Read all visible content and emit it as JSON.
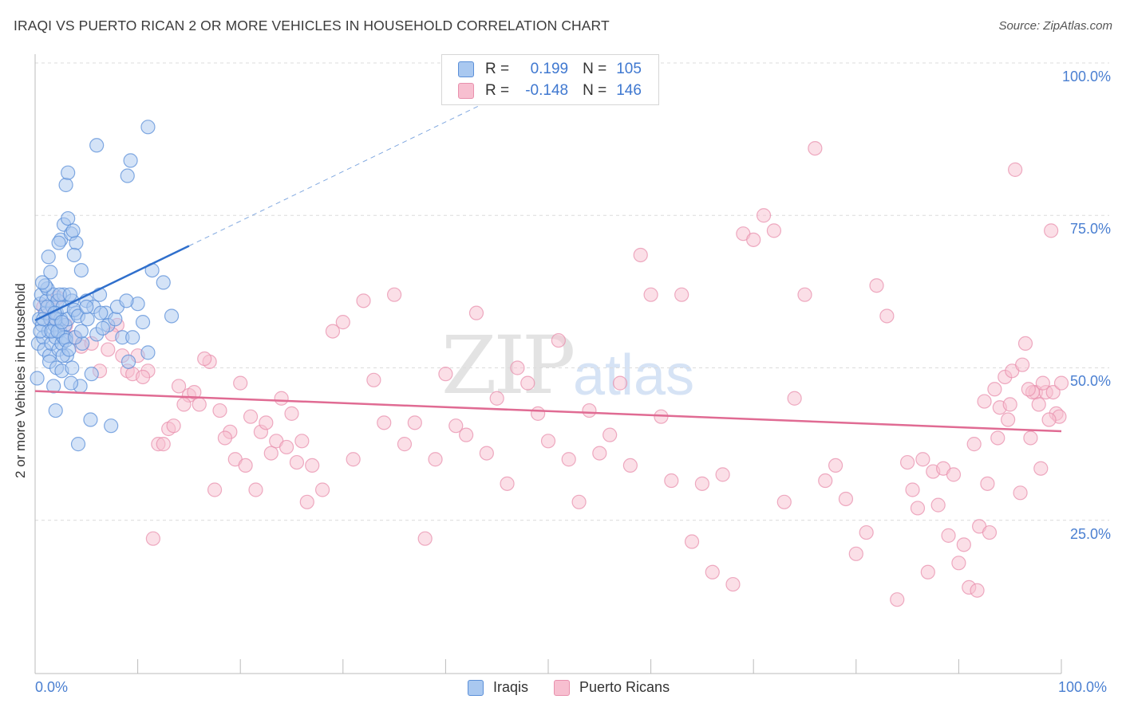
{
  "header": {
    "title": "IRAQI VS PUERTO RICAN 2 OR MORE VEHICLES IN HOUSEHOLD CORRELATION CHART",
    "source": "Source: ZipAtlas.com"
  },
  "watermark": {
    "zip": "ZIP",
    "atlas": "atlas"
  },
  "legend_top": {
    "rows": [
      {
        "r_label": "R =",
        "r_value": "0.199",
        "n_label": "N =",
        "n_value": "105"
      },
      {
        "r_label": "R =",
        "r_value": "-0.148",
        "n_label": "N =",
        "n_value": "146"
      }
    ]
  },
  "colors": {
    "iraqi_fill": "#a9c8f0",
    "iraqi_stroke": "#5b8fd8",
    "iraqi_line": "#2f6fcc",
    "pr_fill": "#f7bfd0",
    "pr_stroke": "#e890ad",
    "pr_line": "#e06b93",
    "grid": "#dcdcdc",
    "tick_text": "#4a7fd1"
  },
  "chart_data": {
    "type": "scatter",
    "title": "IRAQI VS PUERTO RICAN 2 OR MORE VEHICLES IN HOUSEHOLD CORRELATION CHART",
    "xlabel": "",
    "ylabel": "2 or more Vehicles in Household",
    "xlim": [
      0,
      100
    ],
    "ylim": [
      0,
      100
    ],
    "x_tick_labels": [
      "0.0%",
      "100.0%"
    ],
    "y_tick_labels": [
      "25.0%",
      "50.0%",
      "75.0%",
      "100.0%"
    ],
    "y_ticks": [
      25,
      50,
      75,
      100
    ],
    "grid": true,
    "legend_position": "bottom",
    "series": [
      {
        "name": "Iraqis",
        "r": 0.199,
        "n": 105,
        "trend": {
          "x0": 0,
          "y0": 57.8,
          "x1": 15,
          "y1": 70.0,
          "dashed_to_x": 45,
          "dashed_to_y": 94.4
        },
        "points": [
          [
            0.2,
            48.3
          ],
          [
            0.3,
            54
          ],
          [
            0.4,
            58
          ],
          [
            0.5,
            60.5
          ],
          [
            0.6,
            62
          ],
          [
            0.7,
            57
          ],
          [
            0.8,
            55
          ],
          [
            0.9,
            53
          ],
          [
            1.0,
            59
          ],
          [
            1.1,
            61
          ],
          [
            1.2,
            63
          ],
          [
            1.3,
            56
          ],
          [
            1.4,
            52
          ],
          [
            1.5,
            58
          ],
          [
            1.6,
            54
          ],
          [
            1.7,
            60
          ],
          [
            1.8,
            62
          ],
          [
            1.9,
            57
          ],
          [
            2.0,
            55
          ],
          [
            2.1,
            59
          ],
          [
            2.2,
            61
          ],
          [
            2.3,
            53
          ],
          [
            2.4,
            56
          ],
          [
            2.5,
            58
          ],
          [
            2.6,
            54
          ],
          [
            2.7,
            60
          ],
          [
            2.8,
            62
          ],
          [
            2.9,
            57
          ],
          [
            3.0,
            55
          ],
          [
            3.1,
            52
          ],
          [
            0.5,
            56
          ],
          [
            0.8,
            58
          ],
          [
            1.2,
            60
          ],
          [
            1.6,
            56
          ],
          [
            2.0,
            58
          ],
          [
            2.4,
            62
          ],
          [
            2.8,
            55
          ],
          [
            3.2,
            58
          ],
          [
            3.6,
            61
          ],
          [
            4.0,
            59
          ],
          [
            1.0,
            63.5
          ],
          [
            1.5,
            65.7
          ],
          [
            1.3,
            68.2
          ],
          [
            2.5,
            71
          ],
          [
            2.8,
            73.5
          ],
          [
            3.2,
            74.5
          ],
          [
            3.5,
            72
          ],
          [
            4.0,
            70.5
          ],
          [
            3.8,
            68.5
          ],
          [
            4.5,
            66
          ],
          [
            0.7,
            64
          ],
          [
            1.9,
            59
          ],
          [
            2.2,
            56
          ],
          [
            2.6,
            57.5
          ],
          [
            3.0,
            54.5
          ],
          [
            3.4,
            62
          ],
          [
            3.8,
            59.5
          ],
          [
            4.2,
            58.5
          ],
          [
            4.6,
            54
          ],
          [
            5.0,
            61
          ],
          [
            1.4,
            51
          ],
          [
            2.1,
            50
          ],
          [
            2.7,
            52
          ],
          [
            3.3,
            53
          ],
          [
            3.9,
            55
          ],
          [
            4.5,
            56
          ],
          [
            5.1,
            58
          ],
          [
            5.7,
            60
          ],
          [
            6.3,
            62
          ],
          [
            6.9,
            59
          ],
          [
            1.8,
            47
          ],
          [
            2.6,
            49.5
          ],
          [
            3.6,
            50
          ],
          [
            4.4,
            47
          ],
          [
            5.4,
            41.5
          ],
          [
            6.4,
            59
          ],
          [
            7.1,
            57
          ],
          [
            7.8,
            58
          ],
          [
            8.5,
            55
          ],
          [
            9.1,
            51
          ],
          [
            2.0,
            43
          ],
          [
            3.5,
            47.5
          ],
          [
            4.2,
            37.5
          ],
          [
            5.5,
            49
          ],
          [
            6.0,
            55.5
          ],
          [
            7.4,
            40.5
          ],
          [
            8.0,
            60
          ],
          [
            9.5,
            55
          ],
          [
            10.0,
            60.5
          ],
          [
            11.0,
            52.5
          ],
          [
            12.5,
            64
          ],
          [
            11.4,
            66
          ],
          [
            13.3,
            58.5
          ],
          [
            3.0,
            80
          ],
          [
            3.2,
            82
          ],
          [
            6.0,
            86.5
          ],
          [
            9.3,
            84
          ],
          [
            9.0,
            81.5
          ],
          [
            11.0,
            89.5
          ],
          [
            8.9,
            61
          ],
          [
            2.3,
            70.5
          ],
          [
            3.7,
            72.5
          ],
          [
            5.0,
            60
          ],
          [
            6.6,
            56.5
          ],
          [
            10.5,
            57.5
          ]
        ]
      },
      {
        "name": "Puerto Ricans",
        "r": -0.148,
        "n": 146,
        "trend": {
          "x0": 0,
          "y0": 46.2,
          "x1": 100,
          "y1": 39.6
        },
        "points": [
          [
            0.8,
            60
          ],
          [
            1.5,
            58
          ],
          [
            2.2,
            61.5
          ],
          [
            3.0,
            57
          ],
          [
            3.8,
            55
          ],
          [
            4.5,
            53.5
          ],
          [
            5.5,
            54
          ],
          [
            6.3,
            49.5
          ],
          [
            7.1,
            53
          ],
          [
            8.0,
            57
          ],
          [
            9.0,
            49.5
          ],
          [
            10.0,
            52
          ],
          [
            11.0,
            49.5
          ],
          [
            12.0,
            37.5
          ],
          [
            13.0,
            40
          ],
          [
            14.0,
            47
          ],
          [
            15.0,
            45.5
          ],
          [
            16.0,
            44
          ],
          [
            17.0,
            51
          ],
          [
            18.0,
            43
          ],
          [
            19.0,
            39.5
          ],
          [
            20.0,
            47.5
          ],
          [
            21.0,
            42
          ],
          [
            22.0,
            39.5
          ],
          [
            23.0,
            36
          ],
          [
            24.0,
            45
          ],
          [
            25.0,
            42.5
          ],
          [
            26.0,
            38
          ],
          [
            27.0,
            34
          ],
          [
            28.0,
            30
          ],
          [
            29.0,
            56
          ],
          [
            30.0,
            57.5
          ],
          [
            31.0,
            35
          ],
          [
            32.0,
            61
          ],
          [
            33.0,
            48
          ],
          [
            34.0,
            41
          ],
          [
            35.0,
            62
          ],
          [
            36.0,
            37.5
          ],
          [
            37.0,
            41
          ],
          [
            38.0,
            22
          ],
          [
            39.0,
            35
          ],
          [
            40.0,
            49
          ],
          [
            41.0,
            40.5
          ],
          [
            42.0,
            39
          ],
          [
            43.0,
            59
          ],
          [
            44.0,
            36
          ],
          [
            45.0,
            45
          ],
          [
            46.0,
            31
          ],
          [
            47.0,
            50
          ],
          [
            48.0,
            47.5
          ],
          [
            49.0,
            42.5
          ],
          [
            50.0,
            38
          ],
          [
            51.0,
            54.5
          ],
          [
            52.0,
            35
          ],
          [
            53.0,
            28
          ],
          [
            54.0,
            43
          ],
          [
            55.0,
            36
          ],
          [
            56.0,
            39
          ],
          [
            57.0,
            47.5
          ],
          [
            58.0,
            34
          ],
          [
            59.0,
            68.5
          ],
          [
            60.0,
            62
          ],
          [
            61.0,
            42
          ],
          [
            62.0,
            31.5
          ],
          [
            63.0,
            62
          ],
          [
            64.0,
            21.5
          ],
          [
            65.0,
            31
          ],
          [
            66.0,
            16.5
          ],
          [
            67.0,
            32.5
          ],
          [
            68.0,
            14.5
          ],
          [
            69.0,
            72
          ],
          [
            70.0,
            71
          ],
          [
            71.0,
            75
          ],
          [
            72.0,
            72.5
          ],
          [
            73.0,
            28
          ],
          [
            74.0,
            45
          ],
          [
            75.0,
            62
          ],
          [
            76.0,
            86
          ],
          [
            77.0,
            31.5
          ],
          [
            78.0,
            34
          ],
          [
            79.0,
            28.5
          ],
          [
            80.0,
            19.5
          ],
          [
            81.0,
            23
          ],
          [
            82.0,
            63.5
          ],
          [
            83.0,
            58.5
          ],
          [
            84.0,
            12
          ],
          [
            85.0,
            34.5
          ],
          [
            86.0,
            27
          ],
          [
            87.0,
            16.5
          ],
          [
            88.0,
            27.5
          ],
          [
            89.0,
            22.5
          ],
          [
            90.0,
            18
          ],
          [
            91.0,
            14
          ],
          [
            92.0,
            24
          ],
          [
            93.0,
            23
          ],
          [
            94.0,
            43.5
          ],
          [
            95.0,
            44
          ],
          [
            96.0,
            29.5
          ],
          [
            97.0,
            38.5
          ],
          [
            98.0,
            33.5
          ],
          [
            99.0,
            72.5
          ],
          [
            95.5,
            82.5
          ],
          [
            96.5,
            54
          ],
          [
            97.5,
            46
          ],
          [
            98.5,
            46
          ],
          [
            99.5,
            42.5
          ],
          [
            91.5,
            37.5
          ],
          [
            92.5,
            44.5
          ],
          [
            93.5,
            46.5
          ],
          [
            94.5,
            48.5
          ],
          [
            95.2,
            49.5
          ],
          [
            96.2,
            50.5
          ],
          [
            97.2,
            46
          ],
          [
            98.2,
            47.5
          ],
          [
            99.2,
            46
          ],
          [
            99.8,
            42
          ],
          [
            100.0,
            47.5
          ],
          [
            98.8,
            41.5
          ],
          [
            97.8,
            44
          ],
          [
            96.8,
            46.5
          ],
          [
            85.5,
            30
          ],
          [
            86.5,
            35
          ],
          [
            87.5,
            33
          ],
          [
            88.5,
            33.5
          ],
          [
            89.5,
            32.5
          ],
          [
            90.5,
            21
          ],
          [
            91.8,
            13.5
          ],
          [
            92.8,
            31
          ],
          [
            93.8,
            38.5
          ],
          [
            94.8,
            41.5
          ],
          [
            7.5,
            55.5
          ],
          [
            8.5,
            52
          ],
          [
            9.5,
            49
          ],
          [
            10.5,
            48.5
          ],
          [
            11.5,
            22
          ],
          [
            12.5,
            37.5
          ],
          [
            13.5,
            40.5
          ],
          [
            14.5,
            44
          ],
          [
            15.5,
            46
          ],
          [
            16.5,
            51.5
          ],
          [
            17.5,
            30
          ],
          [
            18.5,
            38.5
          ],
          [
            19.5,
            35
          ],
          [
            20.5,
            34
          ],
          [
            21.5,
            30
          ],
          [
            22.5,
            41
          ],
          [
            23.5,
            38
          ],
          [
            24.5,
            37
          ],
          [
            25.5,
            34.5
          ],
          [
            26.5,
            28
          ]
        ]
      }
    ]
  },
  "legend_bottom": {
    "items": [
      "Iraqis",
      "Puerto Ricans"
    ]
  }
}
